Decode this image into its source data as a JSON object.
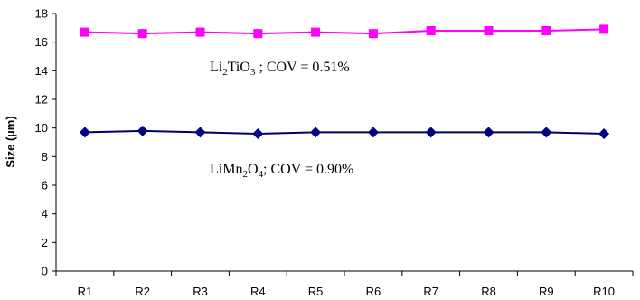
{
  "chart_data": {
    "type": "line",
    "categories": [
      "R1",
      "R2",
      "R3",
      "R4",
      "R5",
      "R6",
      "R7",
      "R8",
      "R9",
      "R10"
    ],
    "ylabel": "Size (µm)",
    "ylim": [
      0,
      18
    ],
    "yticks": [
      0,
      2,
      4,
      6,
      8,
      10,
      12,
      14,
      16,
      18
    ],
    "grid": false,
    "series": [
      {
        "values": [
          16.7,
          16.6,
          16.7,
          16.6,
          16.7,
          16.6,
          16.8,
          16.8,
          16.8,
          16.9
        ],
        "line_color": "#ff00ff",
        "marker": "square",
        "marker_color": "#ff00ff"
      },
      {
        "values": [
          9.7,
          9.8,
          9.7,
          9.6,
          9.7,
          9.7,
          9.7,
          9.7,
          9.7,
          9.6
        ],
        "line_color": "#000066",
        "marker": "diamond",
        "marker_color": "#000080"
      }
    ],
    "annotations": [
      {
        "parts": [
          "Li",
          "2",
          "TiO",
          "3",
          " ; COV = 0.51%"
        ]
      },
      {
        "parts": [
          "LiMn",
          "2",
          "O",
          "4",
          "; COV = 0.90%"
        ]
      }
    ]
  }
}
